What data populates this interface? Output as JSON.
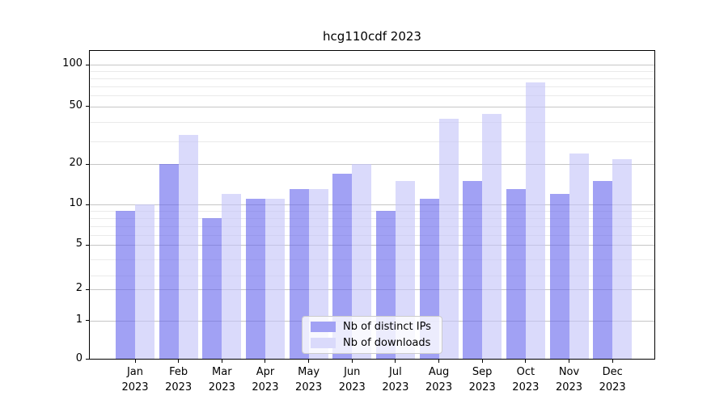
{
  "chart_data": {
    "type": "bar",
    "title": "hcg110cdf 2023",
    "categories": [
      "Jan",
      "Feb",
      "Mar",
      "Apr",
      "May",
      "Jun",
      "Jul",
      "Aug",
      "Sep",
      "Oct",
      "Nov",
      "Dec"
    ],
    "category_year": "2023",
    "series": [
      {
        "name": "Nb of distinct IPs",
        "color": "#a1a1f4",
        "values": [
          9,
          20,
          8,
          11,
          13,
          17,
          9,
          11,
          15,
          13,
          12,
          15
        ]
      },
      {
        "name": "Nb of downloads",
        "color": "#dadafb",
        "values": [
          10,
          33,
          12,
          11,
          13,
          20,
          15,
          42,
          45,
          75,
          24,
          22
        ]
      }
    ],
    "y_ticks": [
      0,
      1,
      2,
      5,
      10,
      20,
      50,
      100
    ],
    "yscale": "symlog",
    "ylim": [
      0,
      140
    ],
    "grid": true,
    "legend_position": "lower center"
  }
}
